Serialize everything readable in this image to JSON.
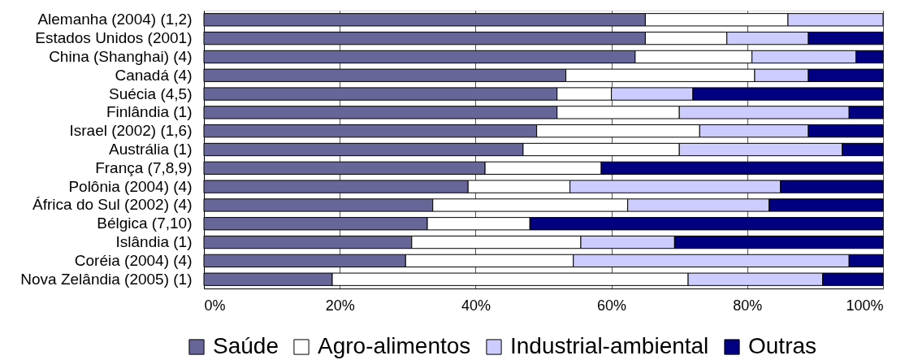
{
  "chart_data": {
    "type": "bar",
    "orientation": "horizontal",
    "stacked": true,
    "categories": [
      "Alemanha (2004) (1,2)",
      "Estados Unidos (2001)",
      "China (Shanghai) (4)",
      "Canadá (4)",
      "Suécia (4,5)",
      "Finlândia (1)",
      "Israel (2002) (1,6)",
      "Austrália (1)",
      "França (7,8,9)",
      "Polônia (2004) (4)",
      "África do Sul (2002) (4)",
      "Bélgica (7,10)",
      "Islândia (1)",
      "Coréia (2004) (4)",
      "Nova Zelândia (2005) (1)"
    ],
    "series": [
      {
        "name": "Saúde",
        "color": "#666699",
        "values": [
          65,
          65,
          63.5,
          53.3,
          52,
          52,
          49,
          47,
          41.4,
          38.9,
          33.7,
          32.9,
          30.6,
          29.7,
          18.9
        ]
      },
      {
        "name": "Agro-alimentos",
        "color": "#ffffff",
        "values": [
          21,
          12,
          17.2,
          27.8,
          8,
          18,
          24,
          23,
          17.1,
          15,
          28.7,
          15.1,
          24.9,
          24.7,
          52.4
        ]
      },
      {
        "name": "Industrial-ambiental",
        "color": "#ccccff",
        "values": [
          14,
          12,
          15.3,
          7.9,
          12,
          25,
          16,
          24,
          null,
          31,
          20.8,
          null,
          13.8,
          40.6,
          19.8
        ]
      },
      {
        "name": "Outras",
        "color": "#000080",
        "values": [
          null,
          11,
          4,
          11,
          28,
          5,
          11,
          6,
          41.5,
          15.1,
          16.8,
          52,
          30.7,
          5,
          8.9
        ]
      }
    ],
    "xlim": [
      0,
      100
    ],
    "xticks": [
      {
        "value": 0,
        "label": "0%"
      },
      {
        "value": 20,
        "label": "20%"
      },
      {
        "value": 40,
        "label": "40%"
      },
      {
        "value": 60,
        "label": "60%"
      },
      {
        "value": 80,
        "label": "80%"
      },
      {
        "value": 100,
        "label": "100%"
      }
    ],
    "grid": "x",
    "legend": "bottom"
  }
}
